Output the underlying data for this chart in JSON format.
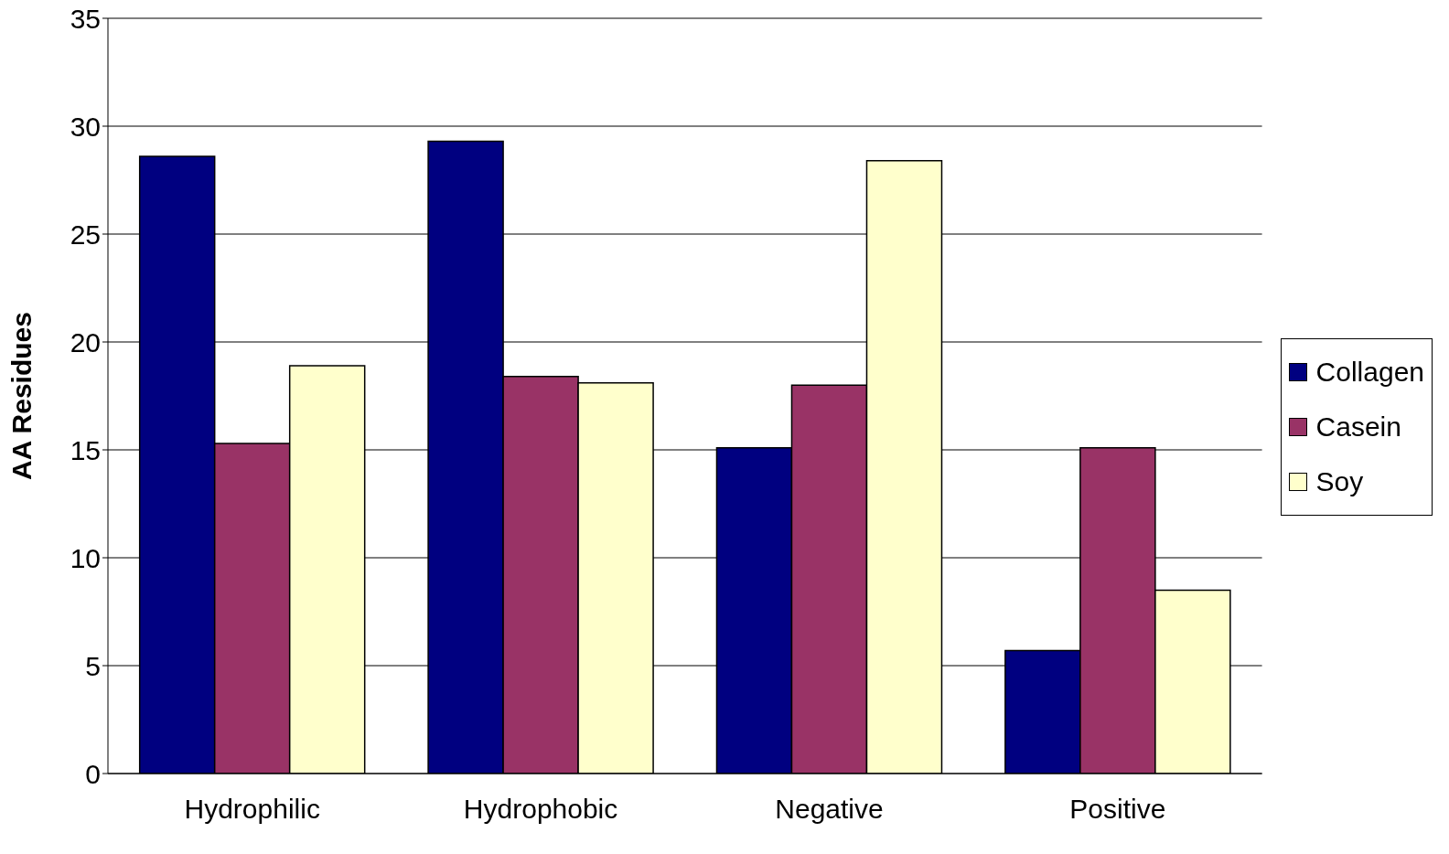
{
  "chart_data": {
    "type": "bar",
    "ylabel": "AA Residues",
    "categories": [
      "Hydrophilic",
      "Hydrophobic",
      "Negative",
      "Positive"
    ],
    "series": [
      {
        "name": "Collagen",
        "color": "#000080",
        "values": [
          28.6,
          29.3,
          15.1,
          5.7
        ]
      },
      {
        "name": "Casein",
        "color": "#993366",
        "values": [
          15.3,
          18.4,
          18.0,
          15.1
        ]
      },
      {
        "name": "Soy",
        "color": "#ffffcc",
        "values": [
          18.9,
          18.1,
          28.4,
          8.5
        ]
      }
    ],
    "ylim": [
      0,
      35
    ],
    "yticks": [
      0,
      5,
      10,
      15,
      20,
      25,
      30,
      35
    ],
    "grid": "y",
    "legend": "right"
  }
}
